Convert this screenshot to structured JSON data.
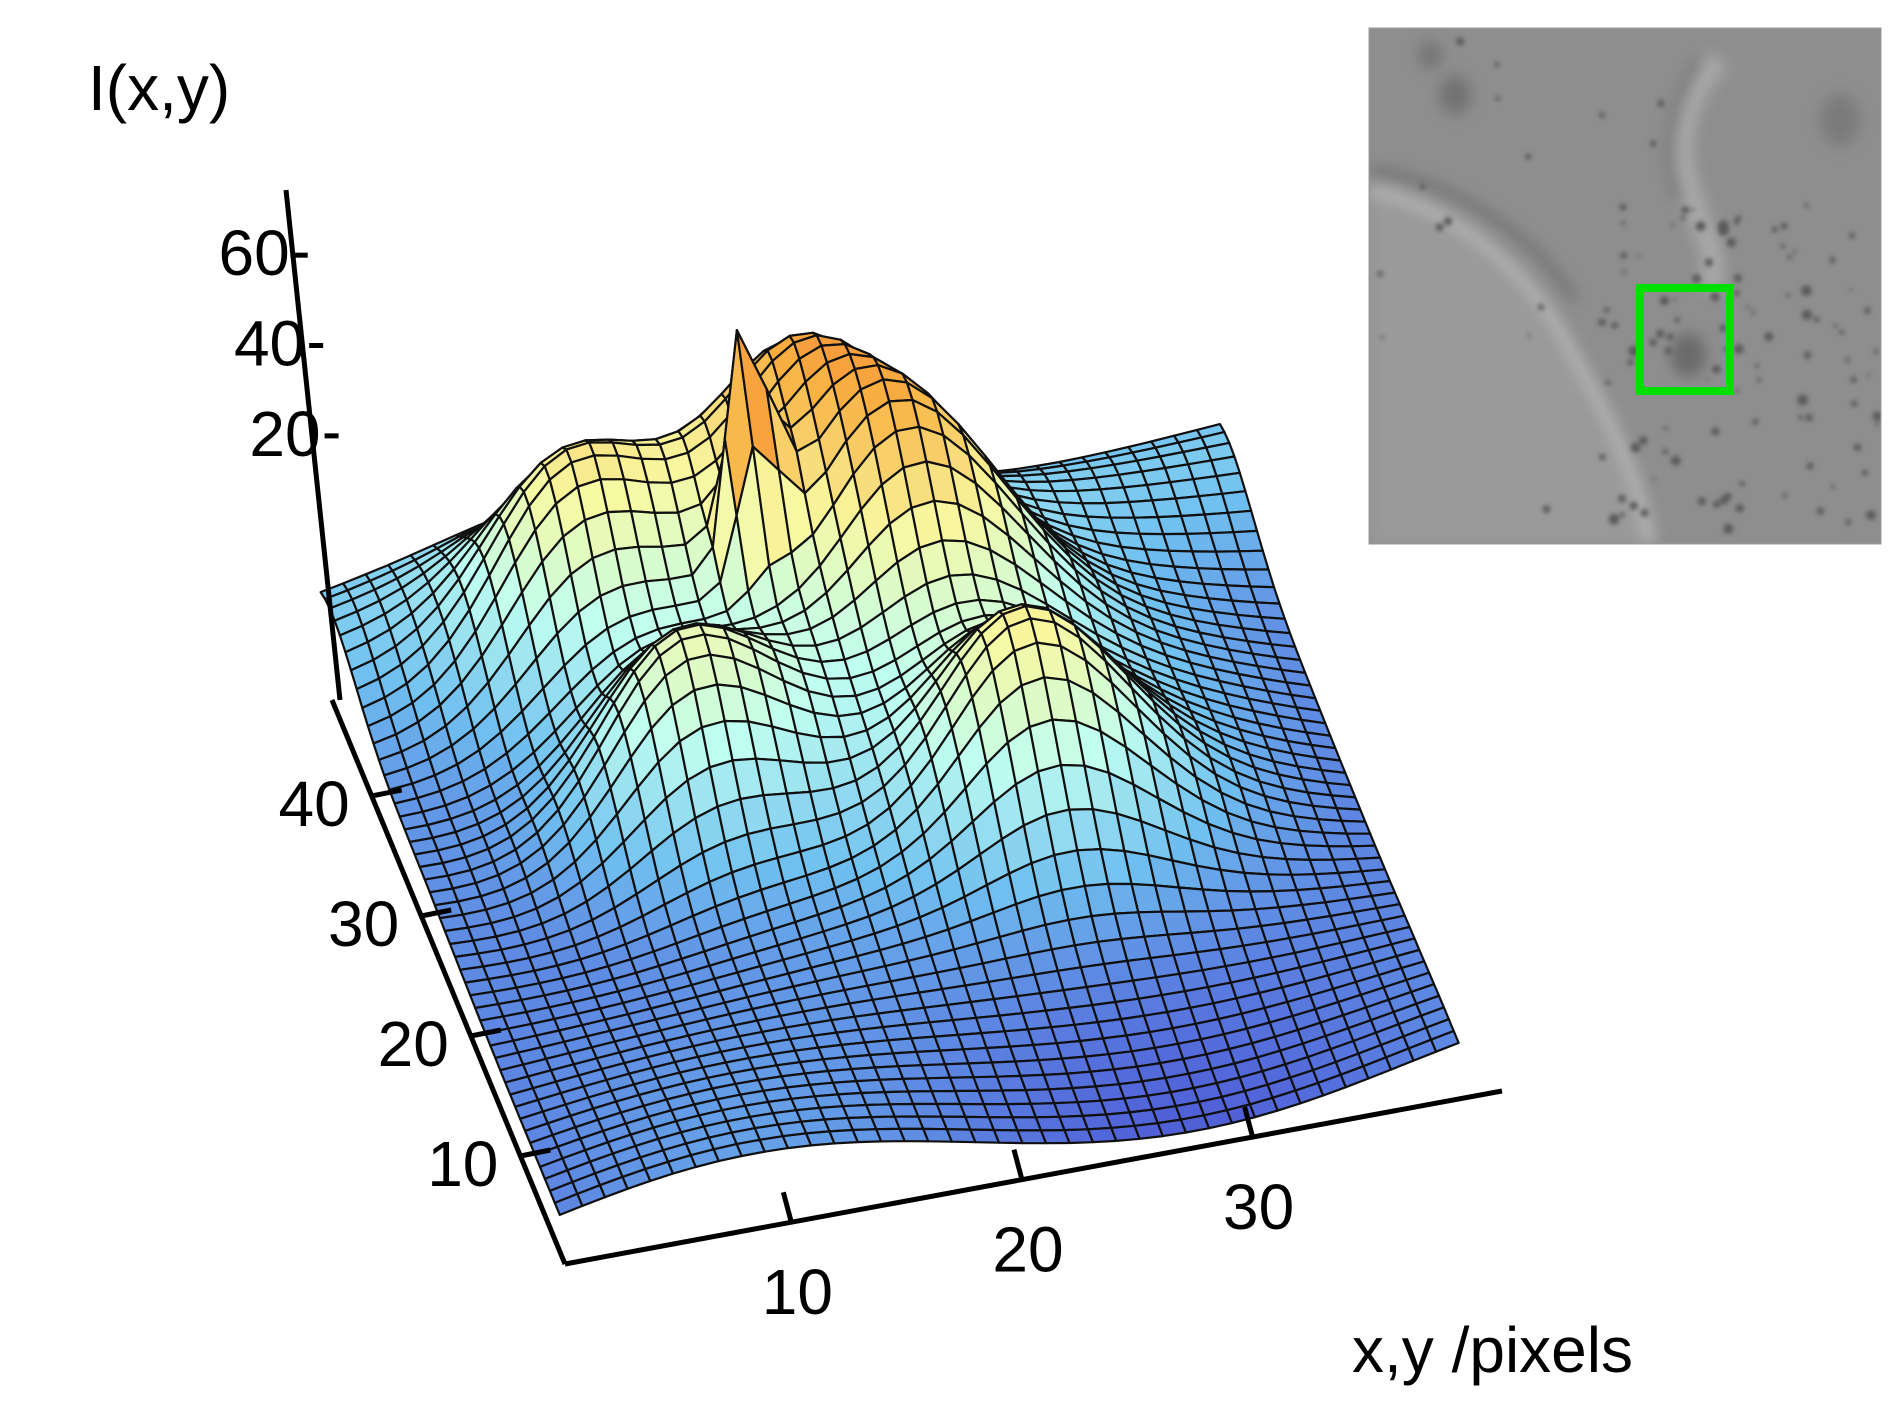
{
  "chart_data": {
    "type": "surface",
    "zlabel": "I(x,y)",
    "xylabel": "x,y /pixels",
    "z_ticks": [
      20,
      40,
      60
    ],
    "x_ticks": [
      10,
      20,
      30
    ],
    "y_ticks": [
      10,
      20,
      30,
      40
    ],
    "x_range": [
      1,
      40
    ],
    "y_range": [
      1,
      48
    ],
    "z_range": [
      0,
      70
    ],
    "peaks": [
      {
        "x": 11,
        "y": 40,
        "z": 38
      },
      {
        "x": 21,
        "y": 41,
        "z": 40
      },
      {
        "x": 25,
        "y": 35,
        "z": 39
      },
      {
        "x": 13,
        "y": 28,
        "z": 36
      },
      {
        "x": 27,
        "y": 22,
        "z": 37
      }
    ],
    "center_spike": {
      "x": 18,
      "y": 36,
      "z": 50
    },
    "colormap": [
      "#5060d8",
      "#70c0f0",
      "#c0fff0",
      "#f8f8a0",
      "#f8b040",
      "#f04030"
    ],
    "inset": {
      "image": "grayscale micrograph",
      "roi_color": "#00e000"
    }
  }
}
